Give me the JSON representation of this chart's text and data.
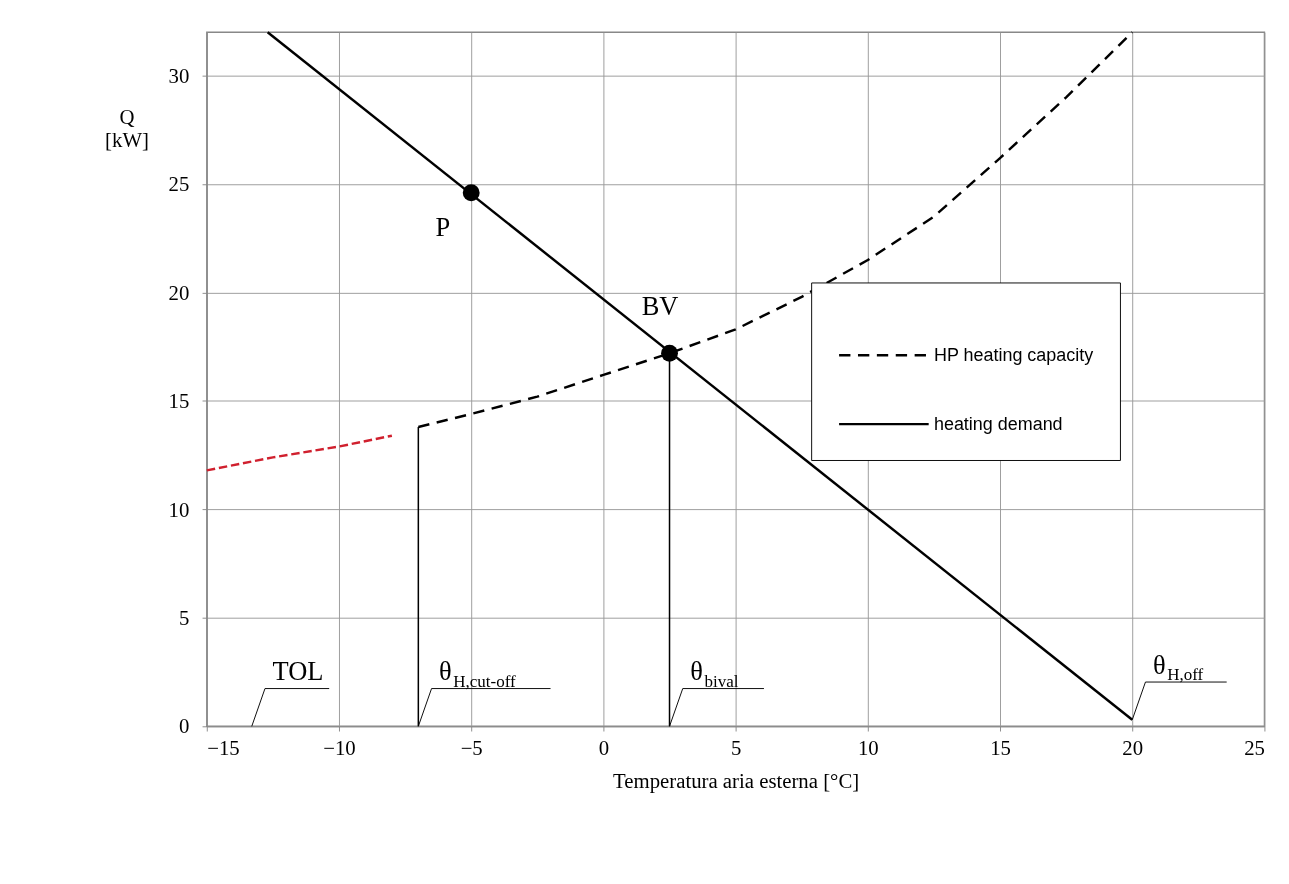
{
  "chart_data": {
    "type": "line",
    "xlabel": "Temperatura  aria esterna [°C]",
    "ylabel": "Q [kW]",
    "xlim": [
      -15,
      25
    ],
    "xticks": [
      -15,
      -10,
      -5,
      0,
      5,
      10,
      15,
      20,
      25
    ],
    "ylim": [
      0,
      32
    ],
    "yticks": [
      0,
      5,
      10,
      15,
      20,
      25,
      30
    ],
    "grid": true,
    "legend": "right",
    "series": [
      {
        "name": "HP heating capacity",
        "color": "#000000",
        "line_style": "dashed",
        "x": [
          -7,
          -5,
          -2.5,
          0,
          2.5,
          5,
          7.5,
          10,
          12.5,
          15,
          17.5,
          20
        ],
        "values": [
          13.8,
          14.4,
          15.2,
          16.2,
          17.2,
          18.3,
          19.8,
          21.5,
          23.5,
          26.2,
          29.0,
          32.0
        ]
      },
      {
        "name": "heating demand",
        "color": "#000000",
        "line_style": "solid",
        "x": [
          -12.7,
          20
        ],
        "values": [
          32,
          0.3
        ]
      },
      {
        "color": "#d0202e",
        "line_style": "dashed",
        "x": [
          -15,
          -12.5,
          -10,
          -8
        ],
        "values": [
          11.8,
          12.4,
          12.9,
          13.4
        ]
      },
      {
        "color": "#000000",
        "line_style": "solid",
        "x": [
          -7,
          -7
        ],
        "values": [
          0,
          13.8
        ]
      },
      {
        "color": "#000000",
        "line_style": "solid",
        "x": [
          2.5,
          2.5
        ],
        "values": [
          0,
          17.2
        ]
      },
      {
        "type": "scatter",
        "marker": "circle",
        "color": "#000000",
        "x": [
          -5,
          2.5
        ],
        "values": [
          24.6,
          17.2
        ]
      }
    ],
    "annotations": [
      {
        "text": "P",
        "x": -5,
        "y": 24.6
      },
      {
        "text": "BV",
        "x": 2.5,
        "y": 17.2
      },
      "TOL",
      {
        "text": "θ$_{H,cut-off}$",
        "x": -7,
        "y": 0
      },
      {
        "text": "θ$_{bival}$",
        "x": 2.5,
        "y": 0
      },
      {
        "text": "θ$_{H,off}$",
        "x": 20,
        "y": 0.3
      }
    ]
  }
}
